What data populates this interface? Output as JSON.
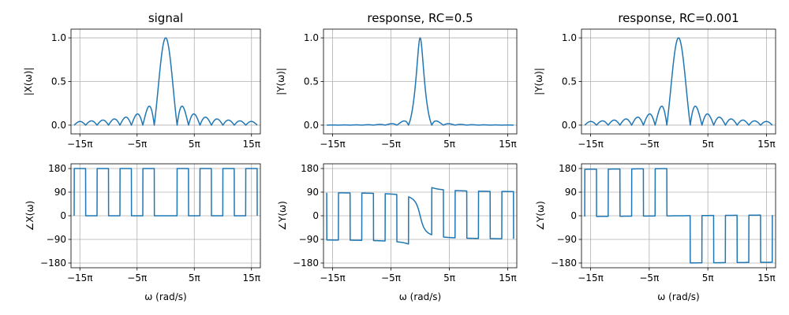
{
  "chart_data": [
    {
      "type": "line",
      "title": "signal",
      "ylabel": "|X(ω)|",
      "xlabel": "",
      "xlim": [
        -52,
        52
      ],
      "ylim": [
        -0.1,
        1.1
      ],
      "xticks": [
        -47.1239,
        -15.708,
        15.708,
        47.1239
      ],
      "xticklabels": [
        "−15π",
        "−5π",
        "5π",
        "15π"
      ],
      "yticks": [
        0,
        0.5,
        1
      ],
      "yticklabels": [
        "0.0",
        "0.5",
        "1.0"
      ],
      "grid": true,
      "series": [
        {
          "function": "|sinc|",
          "width_rad_per_s": 3.14159,
          "x_range": [
            -50.27,
            50.27
          ],
          "samples": 1600,
          "color": "#1f77b4"
        }
      ]
    },
    {
      "type": "line",
      "title": "response, RC=0.5",
      "ylabel": "|Y(ω)|",
      "xlabel": "",
      "xlim": [
        -52,
        52
      ],
      "ylim": [
        -0.1,
        1.1
      ],
      "xticks": [
        -47.1239,
        -15.708,
        15.708,
        47.1239
      ],
      "xticklabels": [
        "−15π",
        "−5π",
        "5π",
        "15π"
      ],
      "yticks": [
        0,
        0.5,
        1
      ],
      "yticklabels": [
        "0.0",
        "0.5",
        "1.0"
      ],
      "grid": true,
      "series": [
        {
          "function": "|sinc| / sqrt(1+(ωRC)^2)",
          "RC": 0.5,
          "x_range": [
            -50.27,
            50.27
          ],
          "samples": 1600,
          "color": "#1f77b4"
        }
      ]
    },
    {
      "type": "line",
      "title": "response, RC=0.001",
      "ylabel": "|Y(ω)|",
      "xlabel": "",
      "xlim": [
        -52,
        52
      ],
      "ylim": [
        -0.1,
        1.1
      ],
      "xticks": [
        -47.1239,
        -15.708,
        15.708,
        47.1239
      ],
      "xticklabels": [
        "−15π",
        "−5π",
        "5π",
        "15π"
      ],
      "yticks": [
        0,
        0.5,
        1
      ],
      "yticklabels": [
        "0.0",
        "0.5",
        "1.0"
      ],
      "grid": true,
      "series": [
        {
          "function": "|sinc| / sqrt(1+(ωRC)^2)",
          "RC": 0.001,
          "x_range": [
            -50.27,
            50.27
          ],
          "samples": 1600,
          "color": "#1f77b4"
        }
      ]
    },
    {
      "type": "line",
      "title": "",
      "ylabel": "∠X(ω)",
      "xlabel": "ω (rad/s)",
      "xlim": [
        -52,
        52
      ],
      "ylim": [
        -198,
        198
      ],
      "xticks": [
        -47.1239,
        -15.708,
        15.708,
        47.1239
      ],
      "xticklabels": [
        "−15π",
        "−5π",
        "5π",
        "15π"
      ],
      "yticks": [
        -180,
        -90,
        0,
        90,
        180
      ],
      "yticklabels": [
        "−180",
        "−90",
        "0",
        "90",
        "180"
      ],
      "grid": true,
      "series": [
        {
          "function": "phase(sinc)",
          "x_range": [
            -50.27,
            50.27
          ],
          "samples": 1600,
          "color": "#1f77b4"
        }
      ]
    },
    {
      "type": "line",
      "title": "",
      "ylabel": "∠Y(ω)",
      "xlabel": "ω (rad/s)",
      "xlim": [
        -52,
        52
      ],
      "ylim": [
        -198,
        198
      ],
      "xticks": [
        -47.1239,
        -15.708,
        15.708,
        47.1239
      ],
      "xticklabels": [
        "−15π",
        "−5π",
        "5π",
        "15π"
      ],
      "yticks": [
        -180,
        -90,
        0,
        90,
        180
      ],
      "yticklabels": [
        "−180",
        "−90",
        "0",
        "90",
        "180"
      ],
      "grid": true,
      "series": [
        {
          "function": "phase(sinc) − atan(ωRC)",
          "RC": 0.5,
          "x_range": [
            -50.27,
            50.27
          ],
          "samples": 1600,
          "color": "#1f77b4"
        }
      ]
    },
    {
      "type": "line",
      "title": "",
      "ylabel": "∠Y(ω)",
      "xlabel": "ω (rad/s)",
      "xlim": [
        -52,
        52
      ],
      "ylim": [
        -198,
        198
      ],
      "xticks": [
        -47.1239,
        -15.708,
        15.708,
        47.1239
      ],
      "xticklabels": [
        "−15π",
        "−5π",
        "5π",
        "15π"
      ],
      "yticks": [
        -180,
        -90,
        0,
        90,
        180
      ],
      "yticklabels": [
        "−180",
        "−90",
        "0",
        "90",
        "180"
      ],
      "grid": true,
      "series": [
        {
          "function": "phase(sinc) − atan(ωRC)",
          "RC": 0.001,
          "flip_sign": true,
          "x_range": [
            -50.27,
            50.27
          ],
          "samples": 1600,
          "color": "#1f77b4"
        }
      ]
    }
  ]
}
